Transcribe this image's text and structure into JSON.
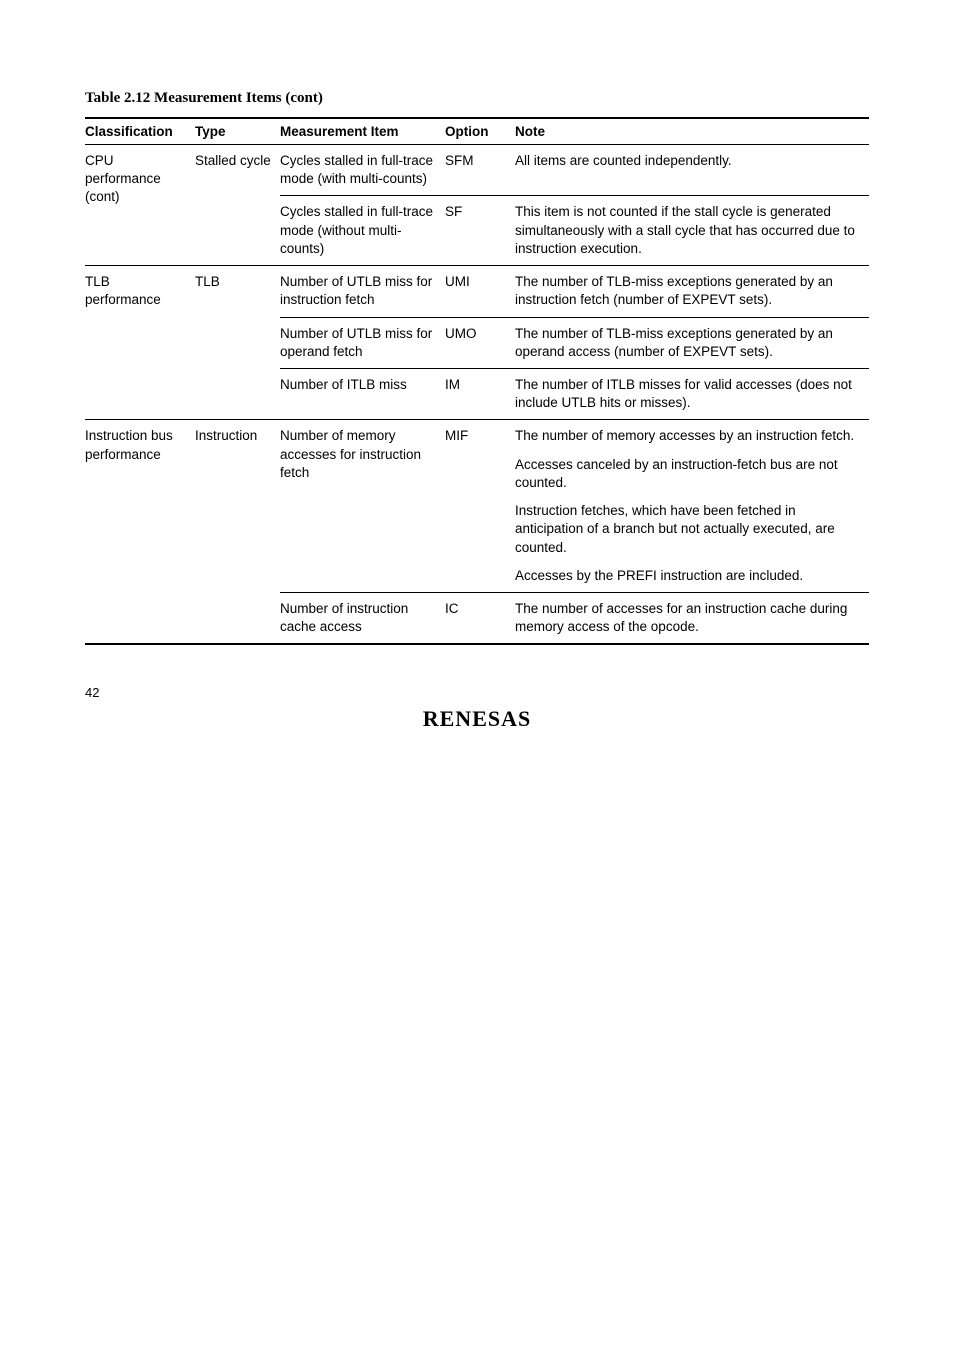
{
  "table_title": "Table 2.12   Measurement Items (cont)",
  "headers": {
    "classification": "Classification",
    "type": "Type",
    "measurement": "Measurement Item",
    "option": "Option",
    "note": "Note"
  },
  "cpu": {
    "classification": "CPU performance (cont)",
    "type": "Stalled cycle",
    "row1": {
      "measurement": "Cycles stalled in full-trace mode (with multi-counts)",
      "option": "SFM",
      "note": "All items are counted independently."
    },
    "row2": {
      "measurement": "Cycles stalled in full-trace mode (without multi-counts)",
      "option": "SF",
      "note": "This item is not counted if the stall cycle is generated simultaneously with a stall cycle that has occurred due to instruction execution."
    }
  },
  "tlb": {
    "classification": "TLB performance",
    "type": "TLB",
    "row1": {
      "measurement": "Number of UTLB miss for instruction fetch",
      "option": "UMI",
      "note": "The number of TLB-miss exceptions generated by an instruction fetch (number of EXPEVT sets)."
    },
    "row2": {
      "measurement": "Number of UTLB miss for operand fetch",
      "option": "UMO",
      "note": "The number of TLB-miss exceptions generated by an operand access (number of EXPEVT sets)."
    },
    "row3": {
      "measurement": "Number of ITLB miss",
      "option": "IM",
      "note": "The number of ITLB misses for valid accesses (does not include UTLB hits or misses)."
    }
  },
  "ibus": {
    "classification": "Instruction bus performance",
    "type": "Instruction",
    "row1": {
      "measurement": "Number of memory accesses for instruction fetch",
      "option": "MIF",
      "note_p1": "The number of memory accesses by an instruction fetch.",
      "note_p2": "Accesses canceled by an instruction-fetch bus are not counted.",
      "note_p3": "Instruction fetches, which have been fetched in anticipation of a branch but not actually executed, are counted.",
      "note_p4": "Accesses by the PREFI instruction are included."
    },
    "row2": {
      "measurement": "Number of instruction cache access",
      "option": "IC",
      "note": "The number of accesses for an instruction cache during memory access of the opcode."
    }
  },
  "page_number": "42",
  "logo_text": "RENESAS"
}
